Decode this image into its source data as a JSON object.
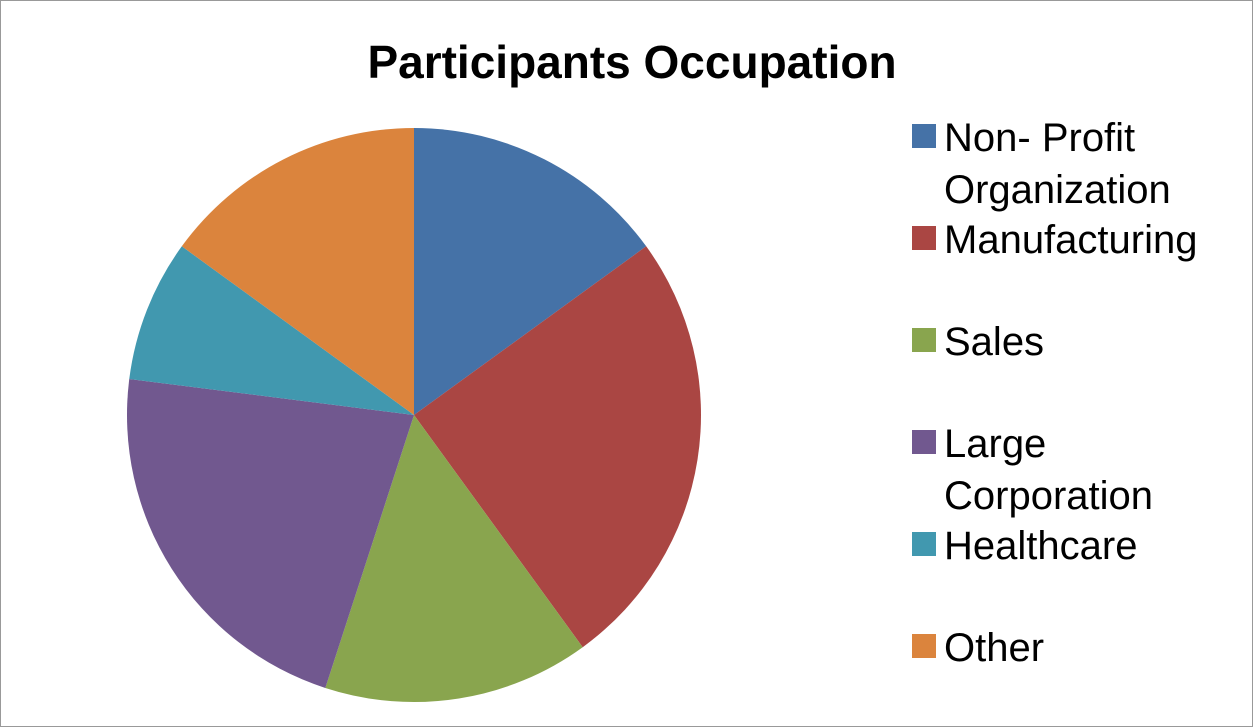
{
  "chart_data": {
    "type": "pie",
    "title": "Participants Occupation",
    "categories": [
      "Non- Profit Organization",
      "Manufacturing",
      "Sales",
      "Large Corporation",
      "Healthcare",
      "Other"
    ],
    "values": [
      15,
      25,
      15,
      22,
      8,
      15
    ],
    "colors": [
      "#4572a7",
      "#aa4643",
      "#89a54e",
      "#71588f",
      "#4198af",
      "#db843d"
    ],
    "legend": "right"
  }
}
